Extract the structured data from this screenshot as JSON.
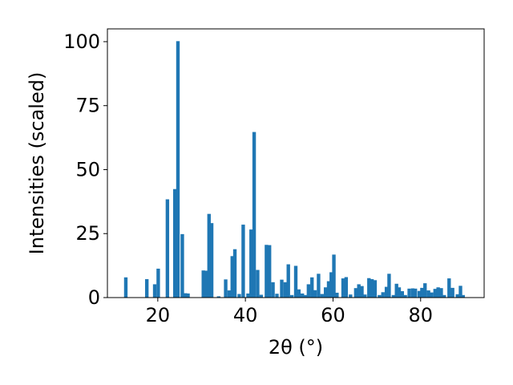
{
  "chart_data": {
    "type": "bar",
    "xlabel": "2θ (°)",
    "ylabel": "Intensities (scaled)",
    "xlim": [
      8.5,
      94.5
    ],
    "ylim": [
      0,
      105
    ],
    "x_ticks": [
      20,
      40,
      60,
      80
    ],
    "y_ticks": [
      0,
      25,
      50,
      75,
      100
    ],
    "grid": false,
    "bar_color": "#1f77b4",
    "bar_width": 0.8,
    "series": [
      {
        "x": [
          12.7,
          17.5,
          19.3,
          20.1,
          22.2,
          23.9,
          24.6,
          25.6,
          26.3,
          26.9,
          30.4,
          31.0,
          31.7,
          32.3,
          33.9,
          35.5,
          36.3,
          37.0,
          37.6,
          38.6,
          39.5,
          40.6,
          41.3,
          42.0,
          42.8,
          43.6,
          44.8,
          45.5,
          46.3,
          47.2,
          48.3,
          49.1,
          49.8,
          50.6,
          51.5,
          52.2,
          53.0,
          53.7,
          54.4,
          55.2,
          55.9,
          56.7,
          57.5,
          58.3,
          59.0,
          59.6,
          60.2,
          60.9,
          62.3,
          63.0,
          64.0,
          65.2,
          65.9,
          66.6,
          67.3,
          68.2,
          68.9,
          69.6,
          70.6,
          71.4,
          72.2,
          72.8,
          73.8,
          74.5,
          75.1,
          75.8,
          76.5,
          77.4,
          78.2,
          78.8,
          79.7,
          80.3,
          81.0,
          81.8,
          82.5,
          83.3,
          84.0,
          84.7,
          85.4,
          86.5,
          87.3,
          88.4,
          89.1,
          89.7
        ],
        "values": [
          7.9,
          7.2,
          5.2,
          11.3,
          38.4,
          42.4,
          100.2,
          24.8,
          1.7,
          1.6,
          10.6,
          10.5,
          32.7,
          29.1,
          0.5,
          7.1,
          2.8,
          16.2,
          18.9,
          1.4,
          28.5,
          1.6,
          26.6,
          64.7,
          10.8,
          1.1,
          20.6,
          20.5,
          6.0,
          1.5,
          7.0,
          6.0,
          13.0,
          1.0,
          12.4,
          3.2,
          1.6,
          1.0,
          5.2,
          7.9,
          2.9,
          9.3,
          1.4,
          4.0,
          6.4,
          9.9,
          16.8,
          1.9,
          7.5,
          8.0,
          1.2,
          3.7,
          5.2,
          4.5,
          1.2,
          7.6,
          7.2,
          6.8,
          1.0,
          2.1,
          4.2,
          9.3,
          1.0,
          5.4,
          4.0,
          2.5,
          1.0,
          3.5,
          3.6,
          3.5,
          2.6,
          3.8,
          5.6,
          2.8,
          2.0,
          3.4,
          4.0,
          3.7,
          1.0,
          7.5,
          3.8,
          1.3,
          4.6,
          1.0
        ]
      }
    ]
  }
}
